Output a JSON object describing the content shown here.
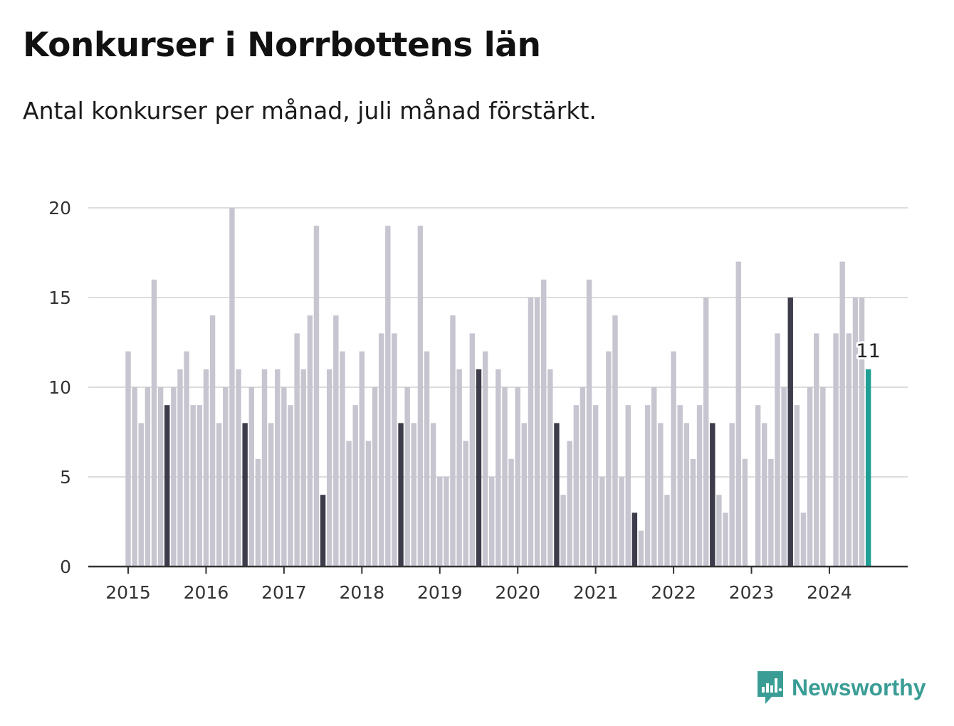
{
  "title": "Konkurser i Norrbottens län",
  "subtitle": "Antal konkurser per månad, juli månad förstärkt.",
  "brand": {
    "name": "Newsworthy",
    "icon": "newsworthy-logo-icon",
    "color": "#3a9d95"
  },
  "chart_data": {
    "type": "bar",
    "start": "2015-01",
    "x_ticks": [
      "2015",
      "2016",
      "2017",
      "2018",
      "2019",
      "2020",
      "2021",
      "2022",
      "2023",
      "2024"
    ],
    "y_ticks": [
      0,
      5,
      10,
      15,
      20
    ],
    "ylim": [
      0,
      20
    ],
    "grid": true,
    "colors": {
      "default": "#c6c5d0",
      "july": "#3d3c4b",
      "latest": "#1f9e94"
    },
    "highlight_month": "juli",
    "annotation": {
      "label": "11",
      "month": "2024-07"
    },
    "values": [
      12,
      10,
      8,
      10,
      16,
      10,
      9,
      10,
      11,
      12,
      9,
      9,
      11,
      14,
      8,
      10,
      20,
      11,
      8,
      10,
      6,
      11,
      8,
      11,
      10,
      9,
      13,
      11,
      14,
      19,
      4,
      11,
      14,
      12,
      7,
      9,
      12,
      7,
      10,
      13,
      19,
      13,
      8,
      10,
      8,
      19,
      12,
      8,
      5,
      5,
      14,
      11,
      7,
      13,
      11,
      12,
      5,
      11,
      10,
      6,
      10,
      8,
      15,
      15,
      16,
      11,
      8,
      4,
      7,
      9,
      10,
      16,
      9,
      5,
      12,
      14,
      5,
      9,
      3,
      2,
      9,
      10,
      8,
      4,
      12,
      9,
      8,
      6,
      9,
      15,
      8,
      4,
      3,
      8,
      17,
      6,
      0,
      9,
      8,
      6,
      13,
      10,
      15,
      9,
      3,
      10,
      13,
      10,
      0,
      13,
      17,
      13,
      15,
      15,
      11
    ]
  }
}
